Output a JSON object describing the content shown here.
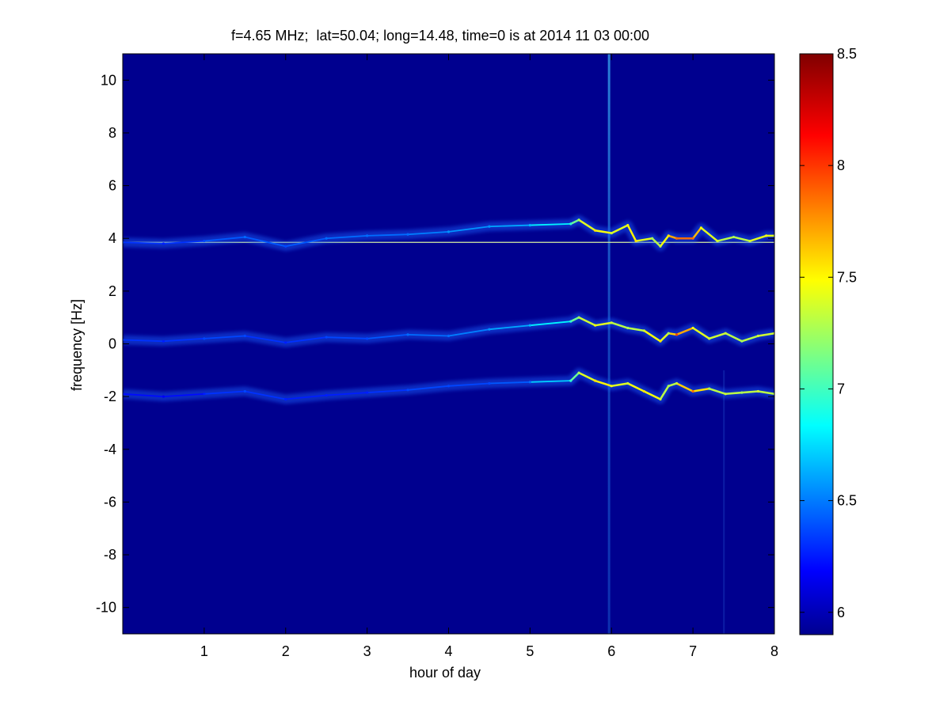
{
  "chart_data": {
    "type": "heatmap",
    "title": "f=4.65 MHz;  lat=50.04; long=14.48, time=0 is at 2014 11 03 00:00",
    "xlabel": "hour of day",
    "ylabel": "frequency [Hz]",
    "xlim": [
      0,
      8
    ],
    "ylim": [
      -11,
      11
    ],
    "xticks": [
      1,
      2,
      3,
      4,
      5,
      6,
      7,
      8
    ],
    "xtick_labels": [
      "1",
      "2",
      "3",
      "4",
      "5",
      "6",
      "7",
      "8"
    ],
    "yticks": [
      -10,
      -8,
      -6,
      -4,
      -2,
      0,
      2,
      4,
      6,
      8,
      10
    ],
    "ytick_labels": [
      "-10",
      "-8",
      "-6",
      "-4",
      "-2",
      "0",
      "2",
      "4",
      "6",
      "8",
      "10"
    ],
    "colormap": "jet",
    "background_color": "#00008f",
    "colorbar": {
      "clim": [
        5.9,
        8.5
      ],
      "ticks": [
        6,
        6.5,
        7,
        7.5,
        8,
        8.5
      ],
      "tick_labels": [
        "6",
        "6.5",
        "7",
        "7.5",
        "8",
        "8.5"
      ]
    },
    "reference_line": {
      "y": 3.85,
      "color": "#d8f0a0"
    },
    "vertical_artifacts": [
      {
        "x": 5.97,
        "kind": "broadband-spike"
      },
      {
        "x": 7.38,
        "kind": "faint-streak"
      }
    ],
    "series": [
      {
        "x": [
          0.0,
          0.5,
          1.0,
          1.5,
          2.0,
          2.5,
          3.0,
          3.5,
          4.0,
          4.5,
          5.0,
          5.5,
          5.6,
          5.8,
          6.0,
          6.2,
          6.3,
          6.5,
          6.6,
          6.7,
          6.8,
          7.0,
          7.1,
          7.3,
          7.5,
          7.7,
          7.9,
          8.0
        ],
        "y": [
          3.85,
          3.8,
          3.9,
          4.05,
          3.7,
          4.0,
          4.1,
          4.15,
          4.25,
          4.45,
          4.5,
          4.55,
          4.7,
          4.3,
          4.2,
          4.5,
          3.9,
          4.0,
          3.7,
          4.1,
          4.0,
          4.0,
          4.4,
          3.9,
          4.05,
          3.9,
          4.1,
          4.1
        ],
        "level": [
          6.4,
          6.3,
          6.4,
          6.5,
          6.4,
          6.5,
          6.5,
          6.5,
          6.6,
          6.6,
          6.7,
          7.0,
          7.3,
          7.6,
          7.4,
          7.5,
          7.6,
          7.3,
          7.4,
          7.6,
          7.9,
          7.9,
          7.5,
          7.4,
          7.3,
          7.4,
          7.5,
          7.4
        ]
      },
      {
        "x": [
          0.0,
          0.5,
          1.0,
          1.5,
          2.0,
          2.5,
          3.0,
          3.5,
          4.0,
          4.5,
          5.0,
          5.5,
          5.6,
          5.8,
          6.0,
          6.2,
          6.4,
          6.6,
          6.7,
          6.8,
          7.0,
          7.2,
          7.4,
          7.6,
          7.8,
          8.0
        ],
        "y": [
          0.15,
          0.1,
          0.2,
          0.3,
          0.05,
          0.25,
          0.2,
          0.35,
          0.3,
          0.55,
          0.7,
          0.85,
          1.0,
          0.7,
          0.8,
          0.6,
          0.5,
          0.1,
          0.4,
          0.35,
          0.6,
          0.2,
          0.4,
          0.1,
          0.3,
          0.4
        ],
        "level": [
          6.4,
          6.3,
          6.4,
          6.4,
          6.3,
          6.4,
          6.4,
          6.5,
          6.5,
          6.6,
          6.7,
          7.0,
          7.3,
          7.5,
          7.4,
          7.3,
          7.4,
          7.6,
          7.3,
          8.0,
          7.5,
          7.4,
          7.4,
          7.3,
          7.4,
          7.4
        ]
      },
      {
        "x": [
          0.0,
          0.5,
          1.0,
          1.5,
          2.0,
          2.5,
          3.0,
          3.5,
          4.0,
          4.5,
          5.0,
          5.5,
          5.6,
          5.8,
          6.0,
          6.2,
          6.4,
          6.6,
          6.7,
          6.8,
          7.0,
          7.2,
          7.4,
          7.6,
          7.8,
          8.0
        ],
        "y": [
          -1.9,
          -2.0,
          -1.9,
          -1.8,
          -2.1,
          -1.95,
          -1.85,
          -1.75,
          -1.6,
          -1.5,
          -1.45,
          -1.4,
          -1.1,
          -1.4,
          -1.6,
          -1.5,
          -1.8,
          -2.1,
          -1.6,
          -1.5,
          -1.8,
          -1.7,
          -1.9,
          -1.85,
          -1.8,
          -1.9
        ],
        "level": [
          6.3,
          6.2,
          6.3,
          6.4,
          6.3,
          6.3,
          6.3,
          6.4,
          6.4,
          6.4,
          6.5,
          7.0,
          7.3,
          7.6,
          7.5,
          7.4,
          7.6,
          7.4,
          7.3,
          7.4,
          7.9,
          7.3,
          7.4,
          7.3,
          7.4,
          7.3
        ]
      }
    ]
  }
}
